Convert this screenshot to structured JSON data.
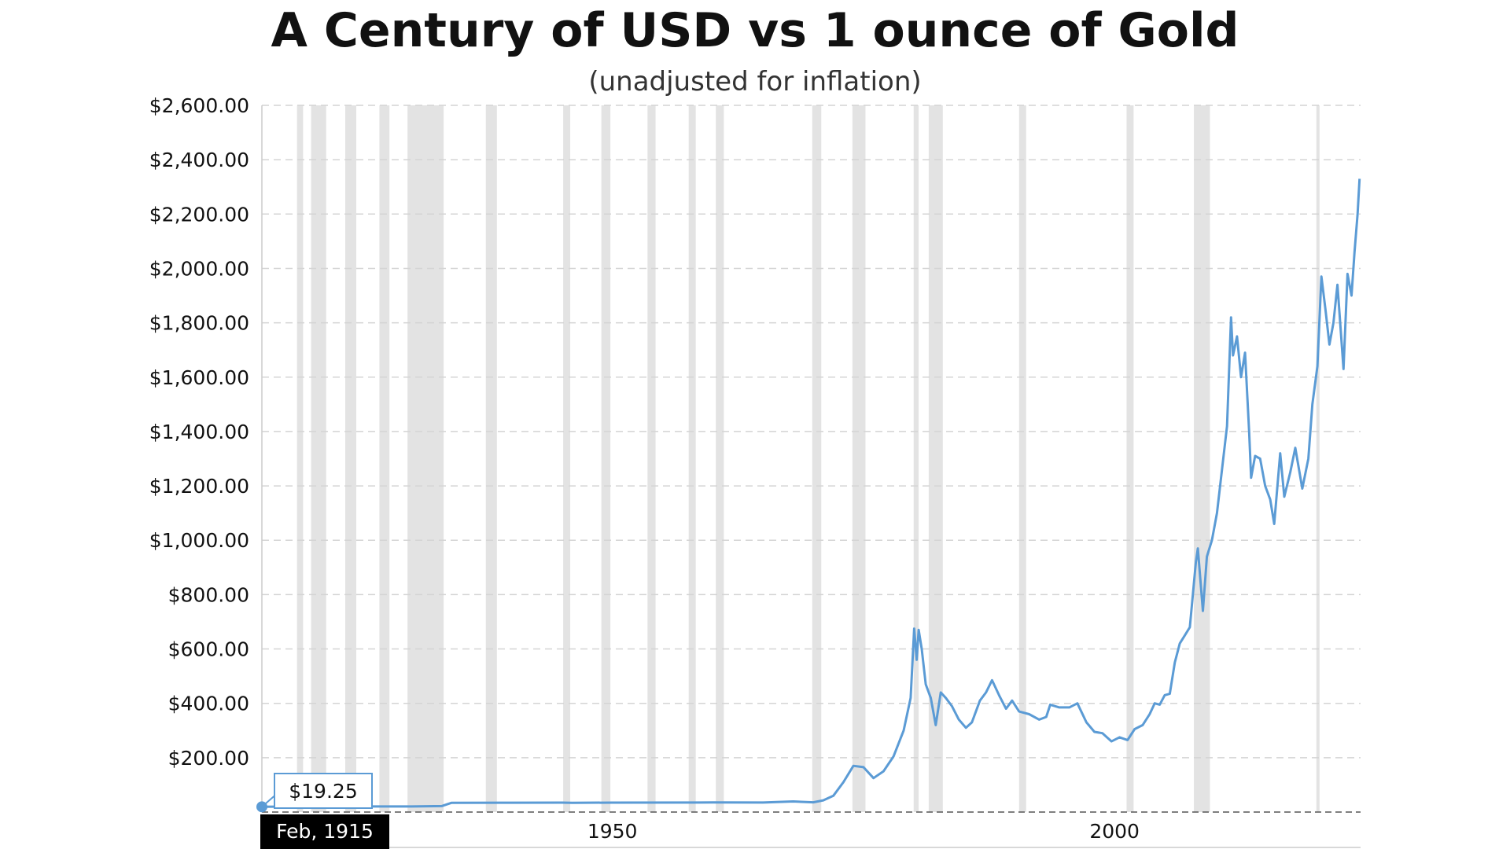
{
  "chart_data": {
    "type": "line",
    "title": "A Century of USD vs 1 ounce of Gold",
    "subtitle": "(unadjusted for inflation)",
    "xlabel": "",
    "ylabel": "",
    "xlim": [
      1915.1,
      2024.5
    ],
    "ylim": [
      0,
      2600
    ],
    "grid": true,
    "legend": "none",
    "y_ticks": [
      200,
      400,
      600,
      800,
      1000,
      1200,
      1400,
      1600,
      1800,
      2000,
      2200,
      2400,
      2600
    ],
    "y_tick_labels": [
      "$200.00",
      "$400.00",
      "$600.00",
      "$800.00",
      "$1,000.00",
      "$1,200.00",
      "$1,400.00",
      "$1,600.00",
      "$1,800.00",
      "$2,000.00",
      "$2,200.00",
      "$2,400.00",
      "$2,600.00"
    ],
    "x_ticks": [
      1950,
      2000
    ],
    "x_tick_labels": [
      "1950",
      "2000"
    ],
    "recessions": [
      [
        1918.6,
        1919.2
      ],
      [
        1920.0,
        1921.5
      ],
      [
        1923.4,
        1924.5
      ],
      [
        1926.8,
        1927.8
      ],
      [
        1929.6,
        1933.2
      ],
      [
        1937.4,
        1938.5
      ],
      [
        1945.1,
        1945.8
      ],
      [
        1948.9,
        1949.8
      ],
      [
        1953.5,
        1954.3
      ],
      [
        1957.6,
        1958.3
      ],
      [
        1960.3,
        1961.1
      ],
      [
        1969.9,
        1970.8
      ],
      [
        1973.9,
        1975.2
      ],
      [
        1980.0,
        1980.5
      ],
      [
        1981.5,
        1982.9
      ],
      [
        1990.5,
        1991.2
      ],
      [
        2001.2,
        2001.9
      ],
      [
        2007.9,
        2009.5
      ],
      [
        2020.1,
        2020.3
      ]
    ],
    "series": [
      {
        "color": "#5b9bd5",
        "points": [
          [
            1915.1,
            19.25
          ],
          [
            1920,
            20.67
          ],
          [
            1930,
            20.67
          ],
          [
            1933,
            22
          ],
          [
            1934,
            34.0
          ],
          [
            1940,
            34.5
          ],
          [
            1945,
            34.7
          ],
          [
            1946,
            34.0
          ],
          [
            1950,
            34.7
          ],
          [
            1960,
            35.3
          ],
          [
            1965,
            35.1
          ],
          [
            1968,
            39
          ],
          [
            1970,
            36
          ],
          [
            1971,
            43
          ],
          [
            1972,
            60
          ],
          [
            1973,
            110
          ],
          [
            1974,
            170
          ],
          [
            1975,
            165
          ],
          [
            1976,
            125
          ],
          [
            1977,
            150
          ],
          [
            1978,
            205
          ],
          [
            1979,
            300
          ],
          [
            1979.7,
            420
          ],
          [
            1980.05,
            675
          ],
          [
            1980.3,
            560
          ],
          [
            1980.5,
            670
          ],
          [
            1980.8,
            600
          ],
          [
            1981.2,
            470
          ],
          [
            1981.7,
            420
          ],
          [
            1982.2,
            320
          ],
          [
            1982.7,
            440
          ],
          [
            1983.2,
            420
          ],
          [
            1983.8,
            390
          ],
          [
            1984.5,
            340
          ],
          [
            1985.2,
            310
          ],
          [
            1985.8,
            330
          ],
          [
            1986.6,
            410
          ],
          [
            1987.2,
            440
          ],
          [
            1987.8,
            485
          ],
          [
            1988.5,
            430
          ],
          [
            1989.2,
            380
          ],
          [
            1989.8,
            410
          ],
          [
            1990.5,
            370
          ],
          [
            1991.5,
            360
          ],
          [
            1992.5,
            340
          ],
          [
            1993.2,
            350
          ],
          [
            1993.6,
            395
          ],
          [
            1994.5,
            385
          ],
          [
            1995.5,
            385
          ],
          [
            1996.3,
            400
          ],
          [
            1997.2,
            330
          ],
          [
            1998,
            295
          ],
          [
            1998.8,
            290
          ],
          [
            1999.7,
            260
          ],
          [
            2000.5,
            275
          ],
          [
            2001.3,
            265
          ],
          [
            2002,
            305
          ],
          [
            2002.8,
            320
          ],
          [
            2003.5,
            360
          ],
          [
            2004,
            400
          ],
          [
            2004.5,
            395
          ],
          [
            2005,
            430
          ],
          [
            2005.5,
            435
          ],
          [
            2006,
            550
          ],
          [
            2006.5,
            620
          ],
          [
            2007,
            650
          ],
          [
            2007.5,
            680
          ],
          [
            2008.1,
            920
          ],
          [
            2008.3,
            970
          ],
          [
            2008.8,
            740
          ],
          [
            2009.2,
            940
          ],
          [
            2009.7,
            1000
          ],
          [
            2010.2,
            1100
          ],
          [
            2010.7,
            1260
          ],
          [
            2011.2,
            1420
          ],
          [
            2011.6,
            1820
          ],
          [
            2011.8,
            1680
          ],
          [
            2012.2,
            1750
          ],
          [
            2012.6,
            1600
          ],
          [
            2013.0,
            1690
          ],
          [
            2013.4,
            1400
          ],
          [
            2013.6,
            1230
          ],
          [
            2014.0,
            1310
          ],
          [
            2014.5,
            1300
          ],
          [
            2015.0,
            1200
          ],
          [
            2015.5,
            1150
          ],
          [
            2015.9,
            1060
          ],
          [
            2016.5,
            1320
          ],
          [
            2016.9,
            1160
          ],
          [
            2017.5,
            1250
          ],
          [
            2018.0,
            1340
          ],
          [
            2018.7,
            1190
          ],
          [
            2019.3,
            1300
          ],
          [
            2019.7,
            1500
          ],
          [
            2020.2,
            1640
          ],
          [
            2020.6,
            1970
          ],
          [
            2021.0,
            1850
          ],
          [
            2021.4,
            1720
          ],
          [
            2021.8,
            1800
          ],
          [
            2022.2,
            1940
          ],
          [
            2022.8,
            1630
          ],
          [
            2023.2,
            1980
          ],
          [
            2023.6,
            1900
          ],
          [
            2023.9,
            2060
          ],
          [
            2024.2,
            2200
          ],
          [
            2024.4,
            2330
          ]
        ]
      }
    ],
    "tooltip": {
      "value_label": "$19.25",
      "date_label": "Feb, 1915"
    }
  }
}
